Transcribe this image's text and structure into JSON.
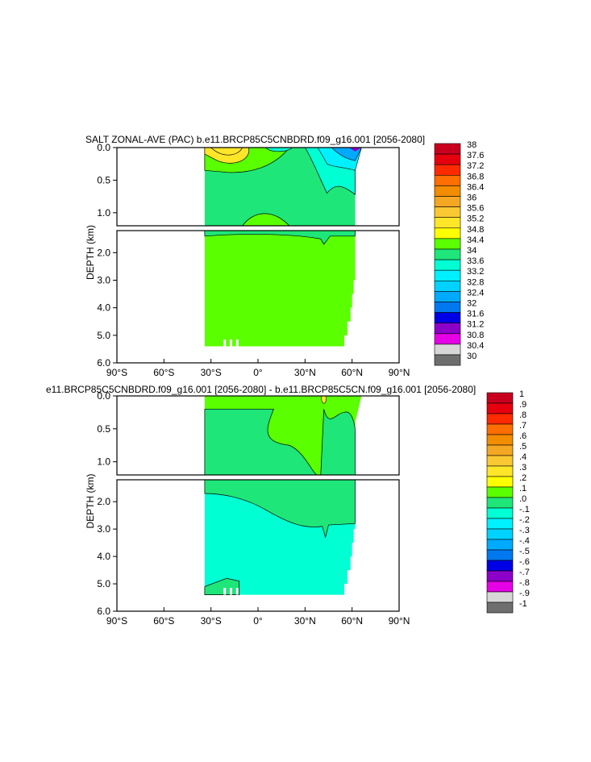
{
  "chart_data": [
    {
      "type": "heatmap",
      "title": "SALT ZONAL-AVE (PAC) b.e11.BRCP85C5CNBDRD.f09_g16.001 [2056-2080]",
      "ylabel": "DEPTH (km)",
      "xlabel": "",
      "x_ticks": [
        "90°S",
        "60°S",
        "30°S",
        "0°",
        "30°N",
        "60°N",
        "90°N"
      ],
      "x_tick_values": [
        -90,
        -60,
        -30,
        0,
        30,
        60,
        90
      ],
      "upper_panel_y_ticks": [
        "0.0",
        "0.5",
        "1.0"
      ],
      "upper_panel_y_values": [
        0,
        0.5,
        1.0
      ],
      "lower_panel_y_ticks": [
        "2.0",
        "3.0",
        "4.0",
        "5.0",
        "6.0"
      ],
      "lower_panel_y_values": [
        2,
        3,
        4,
        5,
        6
      ],
      "ylim": [
        0,
        6
      ],
      "xlim": [
        -90,
        90
      ],
      "colorbar_labels": [
        "38",
        "37.6",
        "37.2",
        "36.8",
        "36.4",
        "36",
        "35.6",
        "35.2",
        "34.8",
        "34.4",
        "34",
        "33.6",
        "33.2",
        "32.8",
        "32.4",
        "32",
        "31.6",
        "31.2",
        "30.8",
        "30.4",
        "30"
      ],
      "colorbar_colors": [
        "#c8001e",
        "#e6000f",
        "#ff2a00",
        "#ff6e00",
        "#f28c00",
        "#f5a623",
        "#fac832",
        "#ffe628",
        "#ffff00",
        "#5aff00",
        "#1ee678",
        "#00ffd2",
        "#00f0ff",
        "#00d2ff",
        "#00aaff",
        "#0078f0",
        "#0000e6",
        "#8c00c8",
        "#e600e6",
        "#d7d7d7",
        "#6e6e6e"
      ],
      "fields": [
        {
          "region": "upper ocean 35°S-60°N",
          "value_range": "34.4-34.8"
        },
        {
          "region": "subtropical south maximum near 25°S surface",
          "value_range": "35.2-35.6"
        },
        {
          "region": "north pacific surface 40°N-65°N",
          "value_range": "32.0-33.6"
        },
        {
          "region": "deep ocean below 1.2 km",
          "value_range": "34.4-34.8"
        }
      ]
    },
    {
      "type": "heatmap",
      "title": "e11.BRCP85C5CNBDRD.f09_g16.001 [2056-2080] - b.e11.BRCP85C5CN.f09_g16.001 [2056-2080]",
      "ylabel": "DEPTH (km)",
      "xlabel": "",
      "x_ticks": [
        "90°S",
        "60°S",
        "30°S",
        "0°",
        "30°N",
        "60°N",
        "90°N"
      ],
      "x_tick_values": [
        -90,
        -60,
        -30,
        0,
        30,
        60,
        90
      ],
      "upper_panel_y_ticks": [
        "0.0",
        "0.5",
        "1.0"
      ],
      "upper_panel_y_values": [
        0,
        0.5,
        1.0
      ],
      "lower_panel_y_ticks": [
        "2.0",
        "3.0",
        "4.0",
        "5.0",
        "6.0"
      ],
      "lower_panel_y_values": [
        2,
        3,
        4,
        5,
        6
      ],
      "ylim": [
        0,
        6
      ],
      "xlim": [
        -90,
        90
      ],
      "colorbar_labels": [
        "1",
        ".9",
        ".8",
        ".7",
        ".6",
        ".5",
        ".4",
        ".3",
        ".2",
        ".1",
        ".0",
        "-.1",
        "-.2",
        "-.3",
        "-.4",
        "-.5",
        "-.6",
        "-.7",
        "-.8",
        "-.9",
        "-1"
      ],
      "colorbar_colors": [
        "#c8001e",
        "#e6000f",
        "#ff2a00",
        "#ff6e00",
        "#f28c00",
        "#f5a623",
        "#fac832",
        "#ffe628",
        "#ffff00",
        "#5aff00",
        "#1ee678",
        "#00ffd2",
        "#00f0ff",
        "#00d2ff",
        "#00aaff",
        "#0078f0",
        "#0000e6",
        "#8c00c8",
        "#e600e6",
        "#d7d7d7",
        "#6e6e6e"
      ],
      "fields": [
        {
          "region": "upper ocean 35°S-65°N",
          "value_range": "0.0-0.1"
        },
        {
          "region": "deep ocean below ~2 km",
          "value_range": "-0.1-0.0"
        },
        {
          "region": "narrow positive plume near 40°N",
          "value_range": "0.2-0.3"
        }
      ]
    }
  ]
}
